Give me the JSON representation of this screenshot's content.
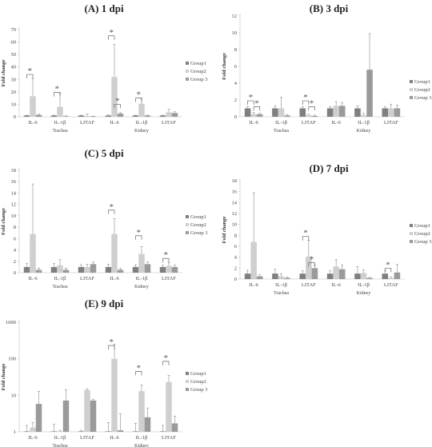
{
  "colors": {
    "group1": "#7f7f7f",
    "group2": "#cfcfcf",
    "group3": "#9a9a9a",
    "axis": "#d0d0d0",
    "star": "#555555"
  },
  "common": {
    "ylabel": "Fold change",
    "star": "*",
    "legend": [
      "Group1",
      "Group2",
      "Group 3"
    ],
    "genes": [
      "IL-6",
      "IL-1β",
      "LITAF"
    ],
    "tissues": [
      "Trachea",
      "Kidney"
    ]
  },
  "chart_data": [
    {
      "id": "A",
      "type": "bar",
      "title": "(A) 1 dpi",
      "ylabel": "Fold change",
      "scale": "linear",
      "ylim": [
        0,
        70
      ],
      "yticks": [
        0,
        10,
        20,
        30,
        40,
        50,
        60,
        70
      ],
      "categories": [
        "IL-6",
        "IL-1β",
        "LITAF",
        "IL-6",
        "IL-1β",
        "LITAF"
      ],
      "groups": [
        "Trachea",
        "Kidney"
      ],
      "legend_position": "right",
      "series": [
        {
          "name": "Group1",
          "values": [
            1,
            1,
            1,
            1,
            1,
            1
          ],
          "errors": [
            0.3,
            0.3,
            0.3,
            0.5,
            0.3,
            0.3
          ]
        },
        {
          "name": "Group2",
          "values": [
            16.5,
            8,
            0.7,
            32,
            10.5,
            3.5
          ],
          "errors": [
            14,
            11,
            1.5,
            26,
            4,
            2.5
          ]
        },
        {
          "name": "Group 3",
          "values": [
            1.5,
            0.4,
            0.3,
            2.5,
            1,
            3
          ],
          "errors": [
            0.5,
            0.3,
            0.2,
            0.8,
            0.3,
            1
          ]
        }
      ],
      "sig": [
        {
          "cat": 0,
          "from": 0,
          "to": 1,
          "y": 34
        },
        {
          "cat": 1,
          "from": 0,
          "to": 1,
          "y": 19.5
        },
        {
          "cat": 3,
          "from": 0,
          "to": 1,
          "y": 65
        },
        {
          "cat": 3,
          "from": 1,
          "to": 2,
          "y": 10
        },
        {
          "cat": 4,
          "from": 0,
          "to": 1,
          "y": 15
        }
      ]
    },
    {
      "id": "B",
      "type": "bar",
      "title": "(B) 3 dpi",
      "ylabel": "Fold change",
      "scale": "linear",
      "ylim": [
        0,
        12
      ],
      "yticks": [
        0,
        2,
        4,
        6,
        8,
        10,
        12
      ],
      "categories": [
        "IL-6",
        "IL-1β",
        "LITAF",
        "IL-6",
        "IL-1β",
        "LITAF"
      ],
      "groups": [
        "Trachea",
        "Kidney"
      ],
      "legend_position": "right",
      "series": [
        {
          "name": "Group1",
          "values": [
            1,
            1,
            1,
            1,
            1,
            1
          ],
          "errors": [
            0.2,
            0.3,
            0.2,
            0.2,
            0.3,
            0.2
          ]
        },
        {
          "name": "Group2",
          "values": [
            0.3,
            1,
            0.2,
            1.3,
            0.2,
            1
          ],
          "errors": [
            0.2,
            1.3,
            0.1,
            0.5,
            0.2,
            0.5
          ]
        },
        {
          "name": "Group 3",
          "values": [
            0.3,
            0.15,
            0.1,
            1.3,
            5.6,
            1
          ],
          "errors": [
            0.1,
            0.1,
            0.1,
            0.4,
            4.3,
            0.4
          ]
        }
      ],
      "sig": [
        {
          "cat": 0,
          "from": 0,
          "to": 1,
          "y": 1.9
        },
        {
          "cat": 0,
          "from": 1,
          "to": 2,
          "y": 1.2
        },
        {
          "cat": 2,
          "from": 0,
          "to": 1,
          "y": 1.9
        },
        {
          "cat": 2,
          "from": 1,
          "to": 2,
          "y": 1.2
        }
      ]
    },
    {
      "id": "C",
      "type": "bar",
      "title": "(C) 5 dpi",
      "ylabel": "Fold change",
      "scale": "linear",
      "ylim": [
        0,
        18
      ],
      "yticks": [
        0,
        2,
        4,
        6,
        8,
        10,
        12,
        14,
        16,
        18
      ],
      "categories": [
        "IL-6",
        "IL-1β",
        "LITAF",
        "IL-6",
        "IL-1β",
        "LITAF"
      ],
      "groups": [
        "Trachea",
        "Kidney"
      ],
      "legend_position": "right",
      "series": [
        {
          "name": "Group1",
          "values": [
            1,
            1,
            1,
            1,
            1,
            1
          ],
          "errors": [
            0.6,
            0.6,
            0.4,
            0.5,
            0.4,
            0.3
          ]
        },
        {
          "name": "Group2",
          "values": [
            6.8,
            1.3,
            1,
            6.8,
            3.3,
            1.2
          ],
          "errors": [
            8.8,
            1,
            0.5,
            2.7,
            1.3,
            0.6
          ]
        },
        {
          "name": "Group 3",
          "values": [
            0.5,
            0.5,
            1.5,
            0.5,
            1.5,
            1
          ],
          "errors": [
            0.3,
            0.3,
            0.4,
            0.3,
            0.4,
            0.3
          ]
        }
      ],
      "sig": [
        {
          "cat": 3,
          "from": 0,
          "to": 1,
          "y": 11
        },
        {
          "cat": 4,
          "from": 0,
          "to": 1,
          "y": 6.5
        },
        {
          "cat": 5,
          "from": 0,
          "to": 1,
          "y": 2.5
        }
      ]
    },
    {
      "id": "D",
      "type": "bar",
      "title": "(D) 7 dpi",
      "ylabel": "Fold change",
      "scale": "linear",
      "ylim": [
        0,
        18
      ],
      "yticks": [
        0,
        2,
        4,
        6,
        8,
        10,
        12,
        14,
        16,
        18
      ],
      "categories": [
        "IL-6",
        "IL-1β",
        "LITAF",
        "IL-6",
        "IL-1β",
        "LITAF"
      ],
      "groups": [
        "Trachea",
        "Kidney"
      ],
      "legend_position": "right",
      "series": [
        {
          "name": "Group1",
          "values": [
            1,
            1,
            1,
            1,
            1,
            1
          ],
          "errors": [
            0.6,
            0.8,
            0.5,
            0.5,
            1.3,
            0.5
          ]
        },
        {
          "name": "Group2",
          "values": [
            6.8,
            0.5,
            4.1,
            2.3,
            1.1,
            0.2
          ],
          "errors": [
            9,
            0.5,
            3,
            1.3,
            0.6,
            0.2
          ]
        },
        {
          "name": "Group 3",
          "values": [
            0.5,
            0.2,
            2,
            1.8,
            0.2,
            1.2
          ],
          "errors": [
            0.3,
            0.2,
            0.5,
            0.8,
            0.1,
            1.5
          ]
        }
      ],
      "sig": [
        {
          "cat": 2,
          "from": 0,
          "to": 1,
          "y": 7.8
        },
        {
          "cat": 2,
          "from": 1,
          "to": 2,
          "y": 3
        },
        {
          "cat": 5,
          "from": 0,
          "to": 1,
          "y": 2
        }
      ]
    },
    {
      "id": "E",
      "type": "bar",
      "title": "(E) 9 dpi",
      "ylabel": "Fold change",
      "scale": "log",
      "ylim": [
        1,
        1000
      ],
      "yticks": [
        1,
        10,
        100,
        1000
      ],
      "categories": [
        "IL-6",
        "IL-1β",
        "LITAF",
        "IL-6",
        "IL-1β",
        "LITAF"
      ],
      "groups": [
        "Trachea",
        "Kidney"
      ],
      "legend_position": "right",
      "series": [
        {
          "name": "Group1",
          "values": [
            1,
            1,
            1,
            1,
            1,
            1
          ],
          "errors": [
            0.5,
            0.6,
            0.1,
            0.8,
            0.7,
            0.5
          ]
        },
        {
          "name": "Group2",
          "values": [
            1.3,
            1,
            14,
            100,
            13,
            23
          ],
          "errors": [
            0.5,
            0.1,
            1,
            150,
            6,
            12
          ]
        },
        {
          "name": "Group 3",
          "values": [
            5.8,
            7.2,
            7.2,
            1.1,
            2.5,
            1.7
          ],
          "errors": [
            7,
            7,
            0.5,
            2,
            2,
            1
          ]
        }
      ],
      "sig": [
        {
          "cat": 3,
          "from": 0,
          "to": 1,
          "y": 230
        },
        {
          "cat": 4,
          "from": 0,
          "to": 1,
          "y": 45
        },
        {
          "cat": 5,
          "from": 0,
          "to": 1,
          "y": 85
        }
      ]
    }
  ]
}
